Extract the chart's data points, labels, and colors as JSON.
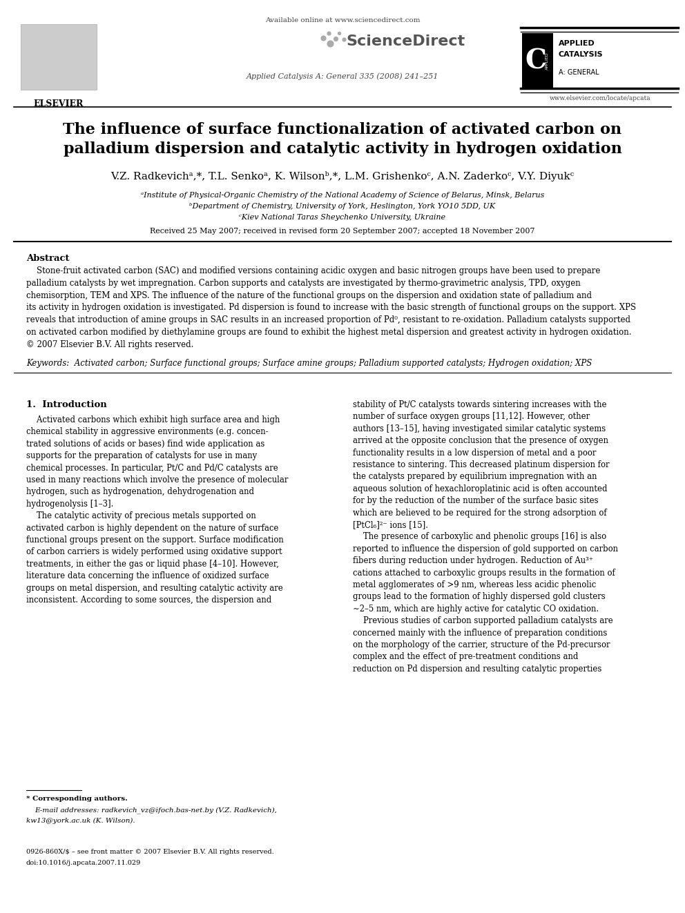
{
  "bg_color": "#ffffff",
  "page_width": 9.92,
  "page_height": 13.23,
  "dpi": 100,
  "header": {
    "elsevier_text": "ELSEVIER",
    "available_online": "Available online at www.sciencedirect.com",
    "sciencedirect": "ScienceDirect",
    "journal_info": "Applied Catalysis A: General 335 (2008) 241–251",
    "applied_catalysis_line1": "APPLIED",
    "applied_catalysis_line2": "CATALYSIS",
    "applied_catalysis_line3": "A: GENERAL",
    "website": "www.elsevier.com/locate/apcata"
  },
  "title_line1": "The influence of surface functionalization of activated carbon on",
  "title_line2": "palladium dispersion and catalytic activity in hydrogen oxidation",
  "authors": "V.Z. Radkevichᵃ,*, T.L. Senkoᵃ, K. Wilsonᵇ,*, L.M. Grishenkoᶜ, A.N. Zaderkoᶜ, V.Y. Diyukᶜ",
  "affil_a": "ᵃInstitute of Physical-Organic Chemistry of the National Academy of Science of Belarus, Minsk, Belarus",
  "affil_b": "ᵇDepartment of Chemistry, University of York, Heslington, York YO10 5DD, UK",
  "affil_c": "ᶜKiev National Taras Sheychenko University, Ukraine",
  "received": "Received 25 May 2007; received in revised form 20 September 2007; accepted 18 November 2007",
  "abstract_title": "Abstract",
  "abstract_text": "    Stone-fruit activated carbon (SAC) and modified versions containing acidic oxygen and basic nitrogen groups have been used to prepare\npalladium catalysts by wet impregnation. Carbon supports and catalysts are investigated by thermo-gravimetric analysis, TPD, oxygen\nchemisorption, TEM and XPS. The influence of the nature of the functional groups on the dispersion and oxidation state of palladium and\nits activity in hydrogen oxidation is investigated. Pd dispersion is found to increase with the basic strength of functional groups on the support. XPS\nreveals that introduction of amine groups in SAC results in an increased proportion of Pd⁰, resistant to re-oxidation. Palladium catalysts supported\non activated carbon modified by diethylamine groups are found to exhibit the highest metal dispersion and greatest activity in hydrogen oxidation.\n© 2007 Elsevier B.V. All rights reserved.",
  "keywords": "Keywords:  Activated carbon; Surface functional groups; Surface amine groups; Palladium supported catalysts; Hydrogen oxidation; XPS",
  "section1_title": "1.  Introduction",
  "section1_left": "    Activated carbons which exhibit high surface area and high\nchemical stability in aggressive environments (e.g. concen-\ntrated solutions of acids or bases) find wide application as\nsupports for the preparation of catalysts for use in many\nchemical processes. In particular, Pt/C and Pd/C catalysts are\nused in many reactions which involve the presence of molecular\nhydrogen, such as hydrogenation, dehydrogenation and\nhydrogenolysis [1–3].\n    The catalytic activity of precious metals supported on\nactivated carbon is highly dependent on the nature of surface\nfunctional groups present on the support. Surface modification\nof carbon carriers is widely performed using oxidative support\ntreatments, in either the gas or liquid phase [4–10]. However,\nliterature data concerning the influence of oxidized surface\ngroups on metal dispersion, and resulting catalytic activity are\ninconsistent. According to some sources, the dispersion and",
  "section1_right": "stability of Pt/C catalysts towards sintering increases with the\nnumber of surface oxygen groups [11,12]. However, other\nauthors [13–15], having investigated similar catalytic systems\narrived at the opposite conclusion that the presence of oxygen\nfunctionality results in a low dispersion of metal and a poor\nresistance to sintering. This decreased platinum dispersion for\nthe catalysts prepared by equilibrium impregnation with an\naqueous solution of hexachloroplatinic acid is often accounted\nfor by the reduction of the number of the surface basic sites\nwhich are believed to be required for the strong adsorption of\n[PtCl₆]²⁻ ions [15].\n    The presence of carboxylic and phenolic groups [16] is also\nreported to influence the dispersion of gold supported on carbon\nfibers during reduction under hydrogen. Reduction of Au³⁺\ncations attached to carboxylic groups results in the formation of\nmetal agglomerates of >9 nm, whereas less acidic phenolic\ngroups lead to the formation of highly dispersed gold clusters\n∼2–5 nm, which are highly active for catalytic CO oxidation.\n    Previous studies of carbon supported palladium catalysts are\nconcerned mainly with the influence of preparation conditions\non the morphology of the carrier, structure of the Pd-precursor\ncomplex and the effect of pre-treatment conditions and\nreduction on Pd dispersion and resulting catalytic properties",
  "footnote_star": "* Corresponding authors.",
  "footnote_email1": "E-mail addresses: radkevich_vz@ifoch.bas-net.by (V.Z. Radkevich),",
  "footnote_email2": "kw13@york.ac.uk (K. Wilson).",
  "bottom_line1": "0926-860X/$ – see front matter © 2007 Elsevier B.V. All rights reserved.",
  "bottom_line2": "doi:10.1016/j.apcata.2007.11.029"
}
